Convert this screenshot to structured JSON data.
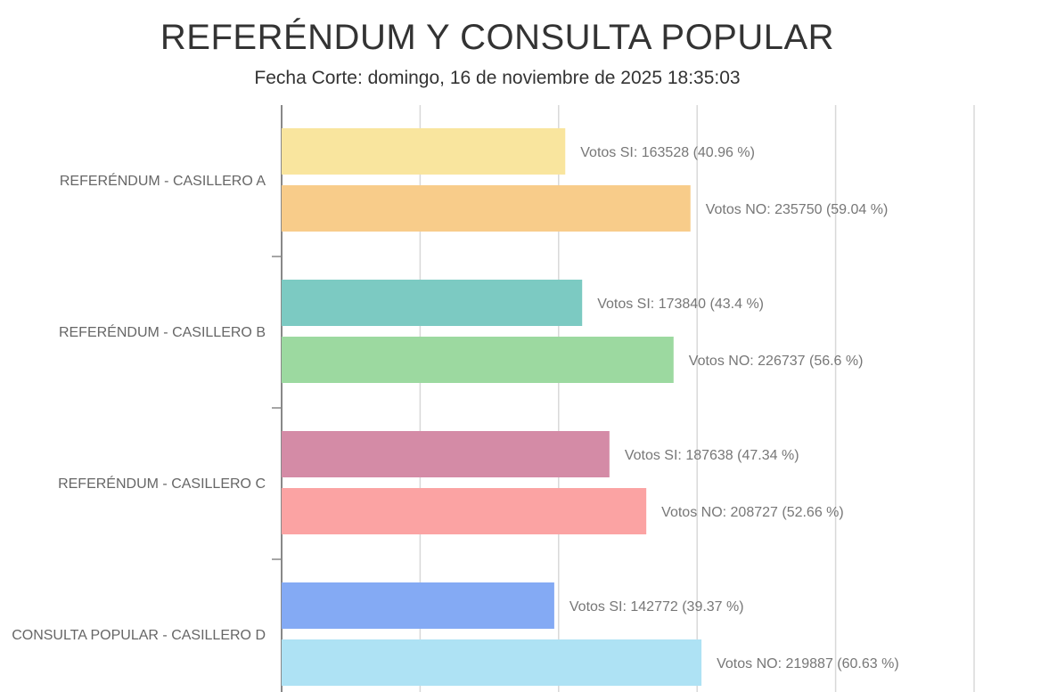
{
  "chart_data": {
    "type": "bar",
    "orientation": "horizontal",
    "title": "REFERÉNDUM Y CONSULTA POPULAR",
    "subtitle": "Fecha Corte: domingo, 16 de noviembre de 2025 18:35:03",
    "categories": [
      "REFERÉNDUM - CASILLERO A",
      "REFERÉNDUM - CASILLERO B",
      "REFERÉNDUM - CASILLERO C",
      "CONSULTA POPULAR - CASILLERO D"
    ],
    "xlim": [
      0,
      100
    ],
    "grid": true,
    "gridlines": [
      0,
      20,
      40,
      60,
      80,
      100
    ],
    "series": [
      {
        "key": "si",
        "votes": [
          163528,
          173840,
          187638,
          142772
        ],
        "values": [
          40.96,
          43.4,
          47.34,
          39.37
        ],
        "labels": [
          "Votos SI: 163528 (40.96 %)",
          "Votos SI: 173840 (43.4 %)",
          "Votos SI: 187638 (47.34 %)",
          "Votos SI: 142772 (39.37 %)"
        ],
        "colors": [
          "#f9e59e",
          "#7ccac2",
          "#d48ba6",
          "#84aaf4"
        ]
      },
      {
        "key": "no",
        "votes": [
          235750,
          226737,
          208727,
          219887
        ],
        "values": [
          59.04,
          56.6,
          52.66,
          60.63
        ],
        "labels": [
          "Votos NO: 235750 (59.04 %)",
          "Votos NO: 226737 (56.6 %)",
          "Votos NO: 208727 (52.66 %)",
          "Votos NO: 219887 (60.63 %)"
        ],
        "colors": [
          "#f8cc8a",
          "#9cd9a0",
          "#fba3a3",
          "#aee2f4"
        ]
      }
    ]
  }
}
